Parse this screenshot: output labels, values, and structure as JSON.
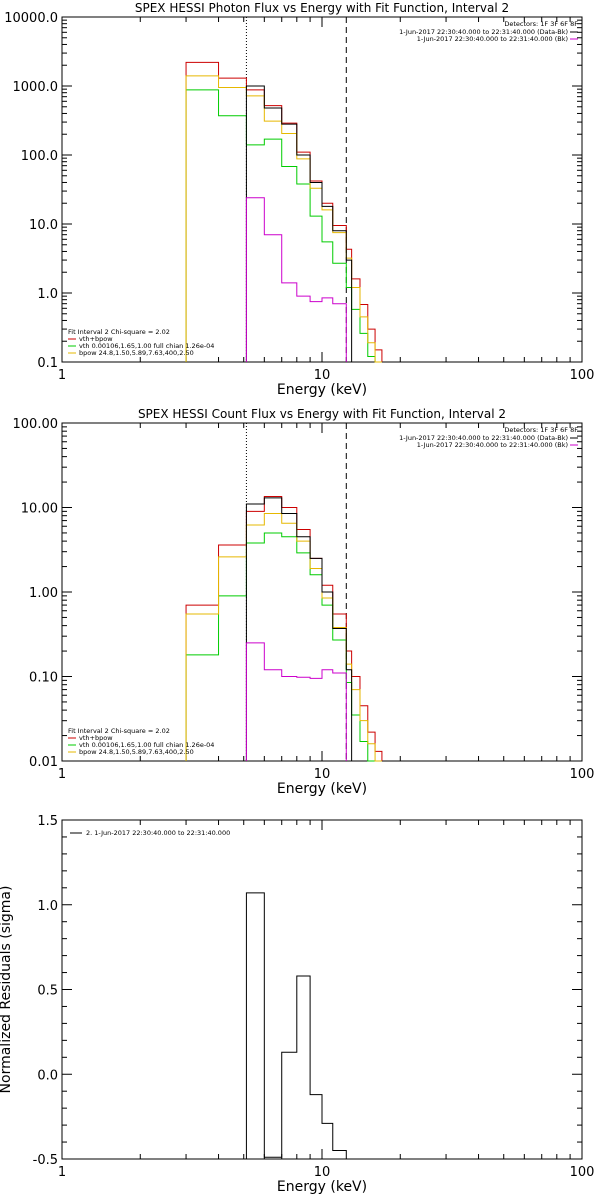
{
  "chart_data": [
    {
      "type": "line",
      "title": "SPEX HESSI Photon Flux vs Energy with Fit Function, Interval 2",
      "xlabel": "Energy (keV)",
      "ylabel": "",
      "xscale": "log",
      "yscale": "log",
      "xlim": [
        1,
        100
      ],
      "ylim": [
        0.1,
        10000
      ],
      "xticks": [
        "1",
        "10",
        "100"
      ],
      "yticks": [
        "0.1",
        "1.0",
        "10.0",
        "100.0",
        "1000.0",
        "10000.0"
      ],
      "vlines": [
        {
          "x": 5.12,
          "style": "dotted"
        },
        {
          "x": 12.4,
          "style": "dashed"
        }
      ],
      "detectors": "Detectors: 1F 3F 6F 8F",
      "legend_right": [
        {
          "label": "1-Jun-2017 22:30:40.000 to 22:31:40.000 (Data-Bk)",
          "color": "#000000"
        },
        {
          "label": "1-Jun-2017 22:30:40.000 to 22:31:40.000 (Bk)",
          "color": "#cc00cc"
        }
      ],
      "legend_left_title": "Fit Interval 2   Chi-square = 2.02",
      "legend_left": [
        {
          "label": "vth+bpow",
          "color": "#cc0000"
        },
        {
          "label": "vth 0.00106,1.65,1.00   full chian 1.26e-04",
          "color": "#00cc00"
        },
        {
          "label": "bpow 24.8,1.50,5.89,7.63,400,2.50",
          "color": "#e6b800"
        }
      ],
      "edges": [
        3,
        4,
        5.12,
        6,
        7,
        8,
        9,
        10,
        11,
        12.4,
        13,
        14,
        15,
        16,
        17,
        18
      ],
      "series": [
        {
          "name": "vth+bpow",
          "color": "#cc0000",
          "start_index": 0,
          "values": [
            2200,
            1300,
            880,
            520,
            290,
            110,
            42,
            20,
            9.5,
            4.3,
            1.6,
            0.68,
            0.3,
            0.15
          ]
        },
        {
          "name": "vth",
          "color": "#00cc00",
          "start_index": 0,
          "values": [
            880,
            370,
            140,
            170,
            68,
            38,
            13,
            5.5,
            2.7,
            1.2,
            0.58,
            0.26,
            0.12,
            0.07
          ]
        },
        {
          "name": "bpow",
          "color": "#e6b800",
          "start_index": 0,
          "values": [
            1400,
            950,
            720,
            310,
            205,
            88,
            33,
            16,
            7.5,
            3.2,
            1.2,
            0.45,
            0.19,
            0.08
          ]
        },
        {
          "name": "Data-Bk",
          "color": "#000000",
          "start_index": 2,
          "values": [
            1000,
            480,
            280,
            100,
            40,
            18,
            8,
            3
          ]
        },
        {
          "name": "Bk",
          "color": "#cc00cc",
          "start_index": 2,
          "values": [
            24,
            7,
            1.4,
            0.9,
            0.75,
            0.85,
            0.7
          ]
        }
      ]
    },
    {
      "type": "line",
      "title": "SPEX HESSI Count Flux vs Energy with Fit Function, Interval 2",
      "xlabel": "Energy (keV)",
      "ylabel": "",
      "xscale": "log",
      "yscale": "log",
      "xlim": [
        1,
        100
      ],
      "ylim": [
        0.01,
        100
      ],
      "xticks": [
        "1",
        "10",
        "100"
      ],
      "yticks": [
        "0.01",
        "0.10",
        "1.00",
        "10.00",
        "100.00"
      ],
      "vlines": [
        {
          "x": 5.12,
          "style": "dotted"
        },
        {
          "x": 12.4,
          "style": "dashed"
        }
      ],
      "detectors": "Detectors: 1F 3F 6F 8F",
      "legend_right": [
        {
          "label": "1-Jun-2017 22:30:40.000 to 22:31:40.000 (Data-Bk)",
          "color": "#000000"
        },
        {
          "label": "1-Jun-2017 22:30:40.000 to 22:31:40.000 (Bk)",
          "color": "#cc00cc"
        }
      ],
      "legend_left_title": "Fit Interval 2   Chi-square = 2.02",
      "legend_left": [
        {
          "label": "vth+bpow",
          "color": "#cc0000"
        },
        {
          "label": "vth 0.00106,1.65,1.00   full chian 1.26e-04",
          "color": "#00cc00"
        },
        {
          "label": "bpow 24.8,1.50,5.89,7.63,400,2.50",
          "color": "#e6b800"
        }
      ],
      "edges": [
        3,
        4,
        5.12,
        6,
        7,
        8,
        9,
        10,
        11,
        12.4,
        13,
        14,
        15,
        16,
        17,
        18
      ],
      "series": [
        {
          "name": "vth+bpow",
          "color": "#cc0000",
          "start_index": 0,
          "values": [
            0.7,
            3.6,
            9,
            13.5,
            10,
            5.5,
            2.5,
            1.2,
            0.55,
            0.2,
            0.1,
            0.045,
            0.022,
            0.013
          ]
        },
        {
          "name": "vth",
          "color": "#00cc00",
          "start_index": 0,
          "values": [
            0.18,
            0.9,
            3.8,
            5,
            4.5,
            2.9,
            1.6,
            0.7,
            0.27,
            0.085,
            0.035,
            0.017,
            0.01,
            0.01
          ]
        },
        {
          "name": "bpow",
          "color": "#e6b800",
          "start_index": 0,
          "values": [
            0.55,
            2.6,
            6.2,
            8.5,
            6.5,
            4,
            1.9,
            0.85,
            0.38,
            0.14,
            0.07,
            0.03,
            0.016,
            0.01
          ]
        },
        {
          "name": "Data-Bk",
          "color": "#000000",
          "start_index": 2,
          "values": [
            11,
            13,
            8.5,
            4.5,
            2.5,
            1.0,
            0.37,
            0.12
          ]
        },
        {
          "name": "Bk",
          "color": "#cc00cc",
          "start_index": 2,
          "values": [
            0.25,
            0.12,
            0.1,
            0.098,
            0.095,
            0.12,
            0.11
          ]
        }
      ]
    },
    {
      "type": "line",
      "title": "",
      "xlabel": "Energy (keV)",
      "ylabel": "Normalized Residuals (sigma)",
      "xscale": "log",
      "yscale": "linear",
      "xlim": [
        1,
        100
      ],
      "ylim": [
        -0.5,
        1.5
      ],
      "xticks": [
        "1",
        "10",
        "100"
      ],
      "yticks": [
        "-0.5",
        "0.0",
        "0.5",
        "1.0",
        "1.5"
      ],
      "legend_right": [],
      "legend_left_title": "",
      "legend_left": [
        {
          "label": "2.  1-Jun-2017 22:30:40.000 to 22:31:40.000",
          "color": "#000000"
        }
      ],
      "edges": [
        5.12,
        6,
        7,
        8,
        9,
        10,
        11,
        12.4
      ],
      "series": [
        {
          "color": "#000000",
          "start_index": 0,
          "values": [
            1.07,
            -0.49,
            0.13,
            0.58,
            -0.12,
            -0.29,
            -0.45
          ]
        }
      ]
    }
  ]
}
